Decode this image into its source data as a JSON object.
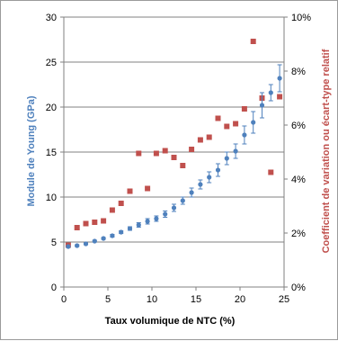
{
  "chart_data": {
    "type": "scatter",
    "title": "",
    "xlabel": "Taux volumique  de NTC (%)",
    "ylabel": "Module de Young (GPa)",
    "y2label": "Coefficient de variation ou écart-type relatif",
    "xlim": [
      0,
      25
    ],
    "ylim": [
      0,
      30
    ],
    "y2lim": [
      0,
      10
    ],
    "x_ticks": [
      "0",
      "5",
      "10",
      "15",
      "20",
      "25"
    ],
    "y_ticks": [
      "0",
      "5",
      "10",
      "15",
      "20",
      "25",
      "30"
    ],
    "y2_ticks": [
      "0%",
      "2%",
      "4%",
      "6%",
      "8%",
      "10%"
    ],
    "grid": "horizontal",
    "legend": "none",
    "colors": {
      "young": "#4f81bd",
      "cv": "#c0504d",
      "grid": "#808080"
    },
    "series": [
      {
        "axis": "left",
        "marker": "circle",
        "x": [
          0.5,
          1.5,
          2.5,
          3.5,
          4.5,
          5.5,
          6.5,
          7.5,
          8.5,
          9.5,
          10.5,
          11.5,
          12.5,
          13.5,
          14.5,
          15.5,
          16.5,
          17.5,
          18.5,
          19.5,
          20.5,
          21.5,
          22.5,
          23.5,
          24.5
        ],
        "y": [
          4.5,
          4.6,
          4.8,
          5.1,
          5.4,
          5.7,
          6.1,
          6.5,
          6.9,
          7.3,
          7.6,
          8.1,
          8.8,
          9.6,
          10.5,
          11.4,
          12.2,
          13.0,
          14.3,
          15.1,
          16.9,
          18.3,
          20.2,
          21.6,
          23.2
        ],
        "err": [
          0.1,
          0.1,
          0.1,
          0.1,
          0.1,
          0.15,
          0.15,
          0.2,
          0.25,
          0.3,
          0.3,
          0.35,
          0.4,
          0.4,
          0.5,
          0.5,
          0.6,
          0.7,
          0.7,
          0.8,
          1.0,
          1.2,
          1.4,
          0.9,
          1.5
        ]
      },
      {
        "axis": "right",
        "marker": "square",
        "x": [
          0.5,
          1.5,
          2.5,
          3.5,
          4.5,
          5.5,
          6.5,
          7.5,
          8.5,
          9.5,
          10.5,
          11.5,
          12.5,
          13.5,
          14.5,
          15.5,
          16.5,
          17.5,
          18.5,
          19.5,
          20.5,
          21.5,
          22.5,
          23.5,
          24.5
        ],
        "y": [
          1.55,
          2.2,
          2.35,
          2.4,
          2.45,
          2.85,
          3.1,
          3.55,
          4.95,
          3.65,
          4.95,
          5.05,
          4.8,
          4.5,
          5.1,
          5.45,
          5.55,
          6.25,
          5.95,
          6.05,
          6.6,
          9.1,
          7.0,
          4.25,
          7.05
        ]
      }
    ]
  }
}
